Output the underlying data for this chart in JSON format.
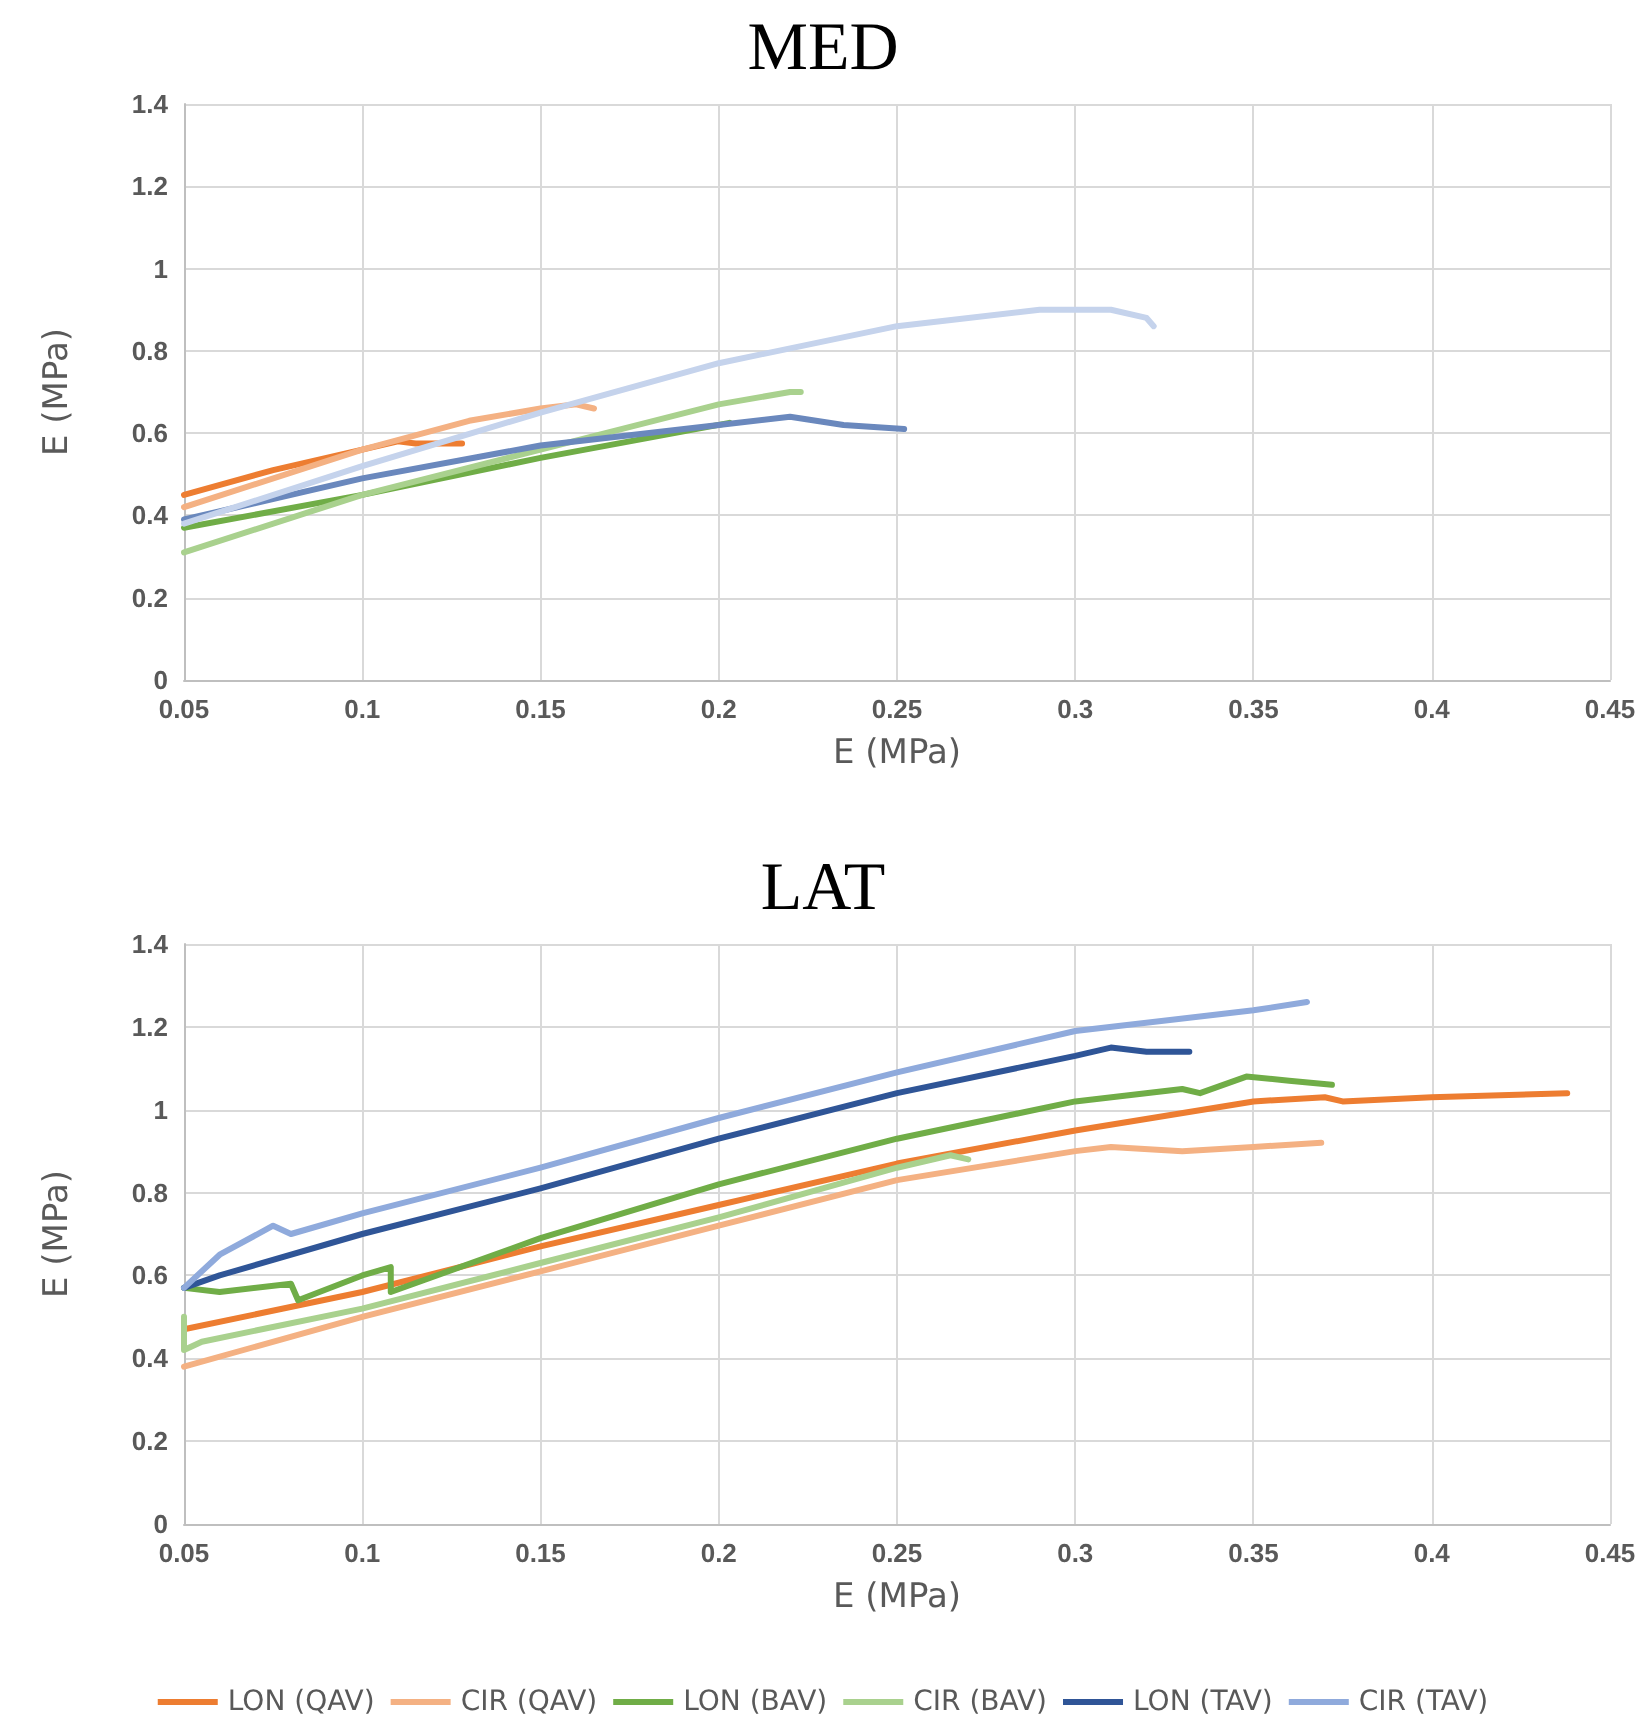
{
  "chart_data": [
    {
      "type": "line",
      "title": "MED",
      "xlabel": "E (MPa)",
      "ylabel": "E (MPa)",
      "xlim": [
        0.05,
        0.45
      ],
      "xticks": [
        0.05,
        0.1,
        0.15,
        0.2,
        0.25,
        0.3,
        0.35,
        0.4,
        0.45
      ],
      "ylim": [
        0,
        1.4
      ],
      "yticks": [
        0,
        0.2,
        0.4,
        0.6,
        0.8,
        1,
        1.2,
        1.4
      ],
      "grid": true,
      "legend": false,
      "marker": "none",
      "line_style": "solid",
      "series": [
        {
          "color": "#ed7d31",
          "x": [
            0.05,
            0.075,
            0.1,
            0.11,
            0.115,
            0.12,
            0.128
          ],
          "values": [
            0.45,
            0.51,
            0.56,
            0.58,
            0.575,
            0.575,
            0.575
          ]
        },
        {
          "color": "#f4b183",
          "x": [
            0.05,
            0.1,
            0.13,
            0.15,
            0.16,
            0.165
          ],
          "values": [
            0.42,
            0.56,
            0.63,
            0.66,
            0.67,
            0.66
          ]
        },
        {
          "color": "#70ad47",
          "x": [
            0.05,
            0.1,
            0.15,
            0.203
          ],
          "values": [
            0.37,
            0.45,
            0.54,
            0.625
          ]
        },
        {
          "color": "#a9d18e",
          "x": [
            0.05,
            0.1,
            0.15,
            0.2,
            0.22,
            0.223
          ],
          "values": [
            0.31,
            0.45,
            0.56,
            0.67,
            0.7,
            0.7
          ]
        },
        {
          "color": "#6a88bd",
          "x": [
            0.05,
            0.1,
            0.15,
            0.2,
            0.22,
            0.235,
            0.252
          ],
          "values": [
            0.39,
            0.49,
            0.57,
            0.62,
            0.64,
            0.62,
            0.61
          ]
        },
        {
          "color": "#c5d3ec",
          "x": [
            0.05,
            0.1,
            0.15,
            0.2,
            0.25,
            0.29,
            0.31,
            0.32,
            0.322
          ],
          "values": [
            0.38,
            0.52,
            0.65,
            0.77,
            0.86,
            0.9,
            0.9,
            0.88,
            0.86
          ]
        }
      ]
    },
    {
      "type": "line",
      "title": "LAT",
      "xlabel": "E (MPa)",
      "ylabel": "E (MPa)",
      "xlim": [
        0.05,
        0.45
      ],
      "xticks": [
        0.05,
        0.1,
        0.15,
        0.2,
        0.25,
        0.3,
        0.35,
        0.4,
        0.45
      ],
      "ylim": [
        0,
        1.4
      ],
      "yticks": [
        0,
        0.2,
        0.4,
        0.6,
        0.8,
        1,
        1.2,
        1.4
      ],
      "grid": true,
      "legend": "bottom",
      "marker": "none",
      "line_style": "solid",
      "series": [
        {
          "name": "LON (QAV)",
          "color": "#ed7d31",
          "x": [
            0.05,
            0.1,
            0.15,
            0.2,
            0.25,
            0.3,
            0.35,
            0.37,
            0.375,
            0.4,
            0.438
          ],
          "values": [
            0.47,
            0.56,
            0.67,
            0.77,
            0.87,
            0.95,
            1.02,
            1.03,
            1.02,
            1.03,
            1.04
          ]
        },
        {
          "name": "CIR (QAV)",
          "color": "#f4b183",
          "x": [
            0.05,
            0.1,
            0.15,
            0.2,
            0.25,
            0.3,
            0.31,
            0.33,
            0.35,
            0.369
          ],
          "values": [
            0.38,
            0.5,
            0.61,
            0.72,
            0.83,
            0.9,
            0.91,
            0.9,
            0.91,
            0.92
          ]
        },
        {
          "name": "LON (BAV)",
          "color": "#70ad47",
          "x": [
            0.05,
            0.06,
            0.08,
            0.082,
            0.1,
            0.108,
            0.108,
            0.15,
            0.2,
            0.25,
            0.3,
            0.33,
            0.335,
            0.348,
            0.36,
            0.372
          ],
          "values": [
            0.57,
            0.56,
            0.58,
            0.54,
            0.6,
            0.62,
            0.56,
            0.69,
            0.82,
            0.93,
            1.02,
            1.05,
            1.04,
            1.08,
            1.07,
            1.06
          ]
        },
        {
          "name": "CIR (BAV)",
          "color": "#a9d18e",
          "x": [
            0.05,
            0.05,
            0.055,
            0.1,
            0.15,
            0.2,
            0.25,
            0.265,
            0.27
          ],
          "values": [
            0.5,
            0.42,
            0.44,
            0.52,
            0.63,
            0.74,
            0.86,
            0.89,
            0.88
          ]
        },
        {
          "name": "LON (TAV)",
          "color": "#2f5597",
          "x": [
            0.05,
            0.06,
            0.1,
            0.15,
            0.2,
            0.25,
            0.3,
            0.31,
            0.32,
            0.332
          ],
          "values": [
            0.57,
            0.6,
            0.7,
            0.81,
            0.93,
            1.04,
            1.13,
            1.15,
            1.14,
            1.14
          ]
        },
        {
          "name": "CIR (TAV)",
          "color": "#8faadc",
          "x": [
            0.05,
            0.06,
            0.075,
            0.08,
            0.1,
            0.15,
            0.2,
            0.25,
            0.3,
            0.35,
            0.365
          ],
          "values": [
            0.57,
            0.65,
            0.72,
            0.7,
            0.75,
            0.86,
            0.98,
            1.09,
            1.19,
            1.24,
            1.26
          ]
        }
      ]
    }
  ]
}
